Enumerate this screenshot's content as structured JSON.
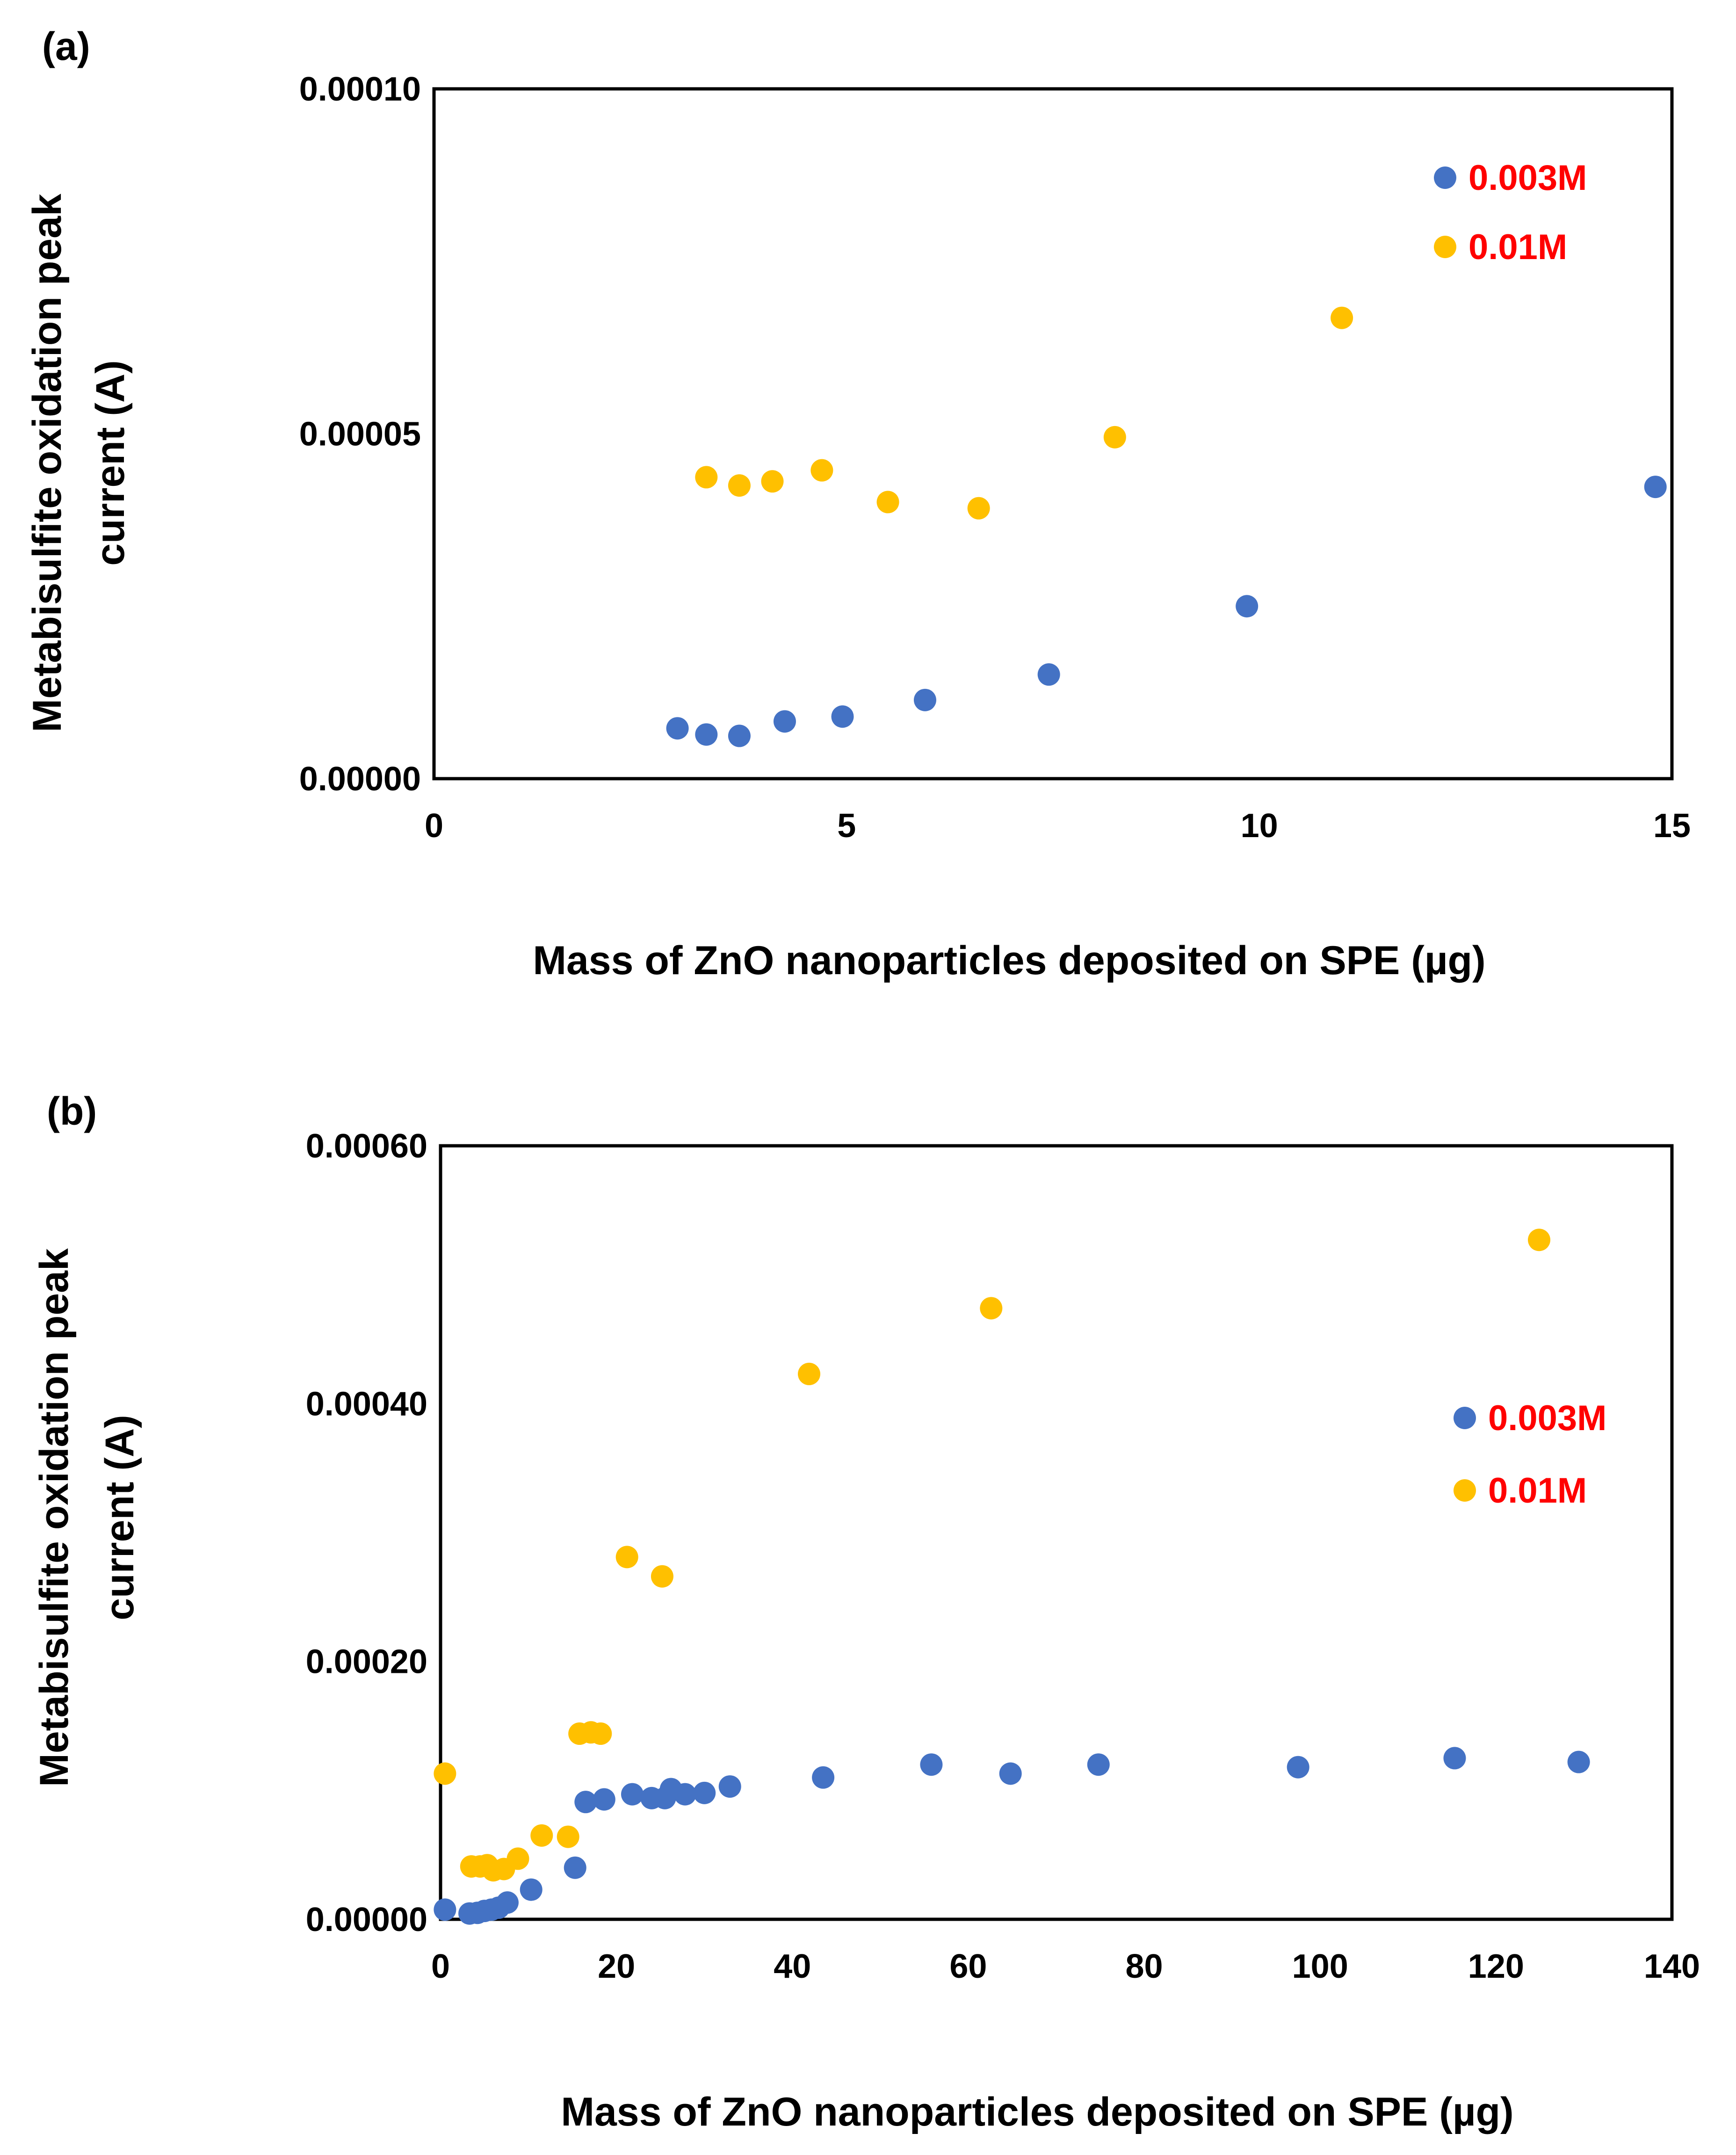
{
  "chart_data": [
    {
      "type": "scatter",
      "panel_label": "(a)",
      "xlabel": "Mass of ZnO nanoparticles deposited on SPE (µg)",
      "ylabel_lines": [
        "Metabisulfite oxidation peak",
        "current  (A)"
      ],
      "xlim": [
        0,
        15
      ],
      "ylim": [
        0,
        0.0001
      ],
      "xticks": [
        0,
        5,
        10,
        15
      ],
      "xtick_labels": [
        "0",
        "5",
        "10",
        "15"
      ],
      "yticks": [
        0,
        5e-05,
        0.0001
      ],
      "ytick_labels": [
        "0.00000",
        "0.00005",
        "0.00010"
      ],
      "legend_position": "top-right",
      "series": [
        {
          "name": "0.003M",
          "color": "#4472C4",
          "x": [
            2.95,
            3.3,
            3.7,
            4.25,
            4.95,
            5.95,
            7.45,
            9.85,
            14.8
          ],
          "y": [
            7.3e-06,
            6.4e-06,
            6.2e-06,
            8.3e-06,
            9e-06,
            1.14e-05,
            1.51e-05,
            2.5e-05,
            4.23e-05
          ]
        },
        {
          "name": "0.01M",
          "color": "#FFC000",
          "x": [
            3.3,
            3.7,
            4.1,
            4.7,
            5.5,
            6.6,
            8.25,
            11.0
          ],
          "y": [
            4.37e-05,
            4.25e-05,
            4.31e-05,
            4.47e-05,
            4.01e-05,
            3.92e-05,
            4.95e-05,
            6.68e-05
          ]
        }
      ]
    },
    {
      "type": "scatter",
      "panel_label": "(b)",
      "xlabel": "Mass of ZnO nanoparticles deposited on SPE (µg)",
      "ylabel_lines": [
        "Metabisulfite oxidation peak",
        "current  (A)"
      ],
      "xlim": [
        0,
        140
      ],
      "ylim": [
        0,
        0.0006
      ],
      "xticks": [
        0,
        20,
        40,
        60,
        80,
        100,
        120,
        140
      ],
      "xtick_labels": [
        "0",
        "20",
        "40",
        "60",
        "80",
        "100",
        "120",
        "140"
      ],
      "yticks": [
        0,
        0.0002,
        0.0004,
        0.0006
      ],
      "ytick_labels": [
        "0.00000",
        "0.00020",
        "0.00040",
        "0.00060"
      ],
      "legend_position": "right",
      "series": [
        {
          "name": "0.003M",
          "color": "#4472C4",
          "x": [
            0.5,
            3.3,
            4.2,
            5.0,
            5.8,
            6.6,
            7.6,
            10.3,
            15.3,
            16.5,
            18.6,
            21.8,
            24.0,
            25.5,
            26.2,
            27.8,
            30.0,
            32.9,
            43.5,
            55.8,
            64.8,
            74.8,
            97.5,
            115.3,
            129.4
          ],
          "y": [
            7.5e-06,
            4.5e-06,
            5e-06,
            6.5e-06,
            7.5e-06,
            9e-06,
            1.3e-05,
            2.3e-05,
            4e-05,
            9.1e-05,
            9.3e-05,
            9.7e-05,
            9.4e-05,
            9.4e-05,
            0.000101,
            9.7e-05,
            9.8e-05,
            0.000103,
            0.00011,
            0.00012,
            0.000113,
            0.00012,
            0.000118,
            0.000125,
            0.000122
          ]
        },
        {
          "name": "0.01M",
          "color": "#FFC000",
          "x": [
            0.5,
            3.5,
            4.5,
            5.3,
            6.0,
            7.2,
            8.8,
            11.5,
            14.5,
            15.8,
            17.1,
            18.2,
            21.2,
            25.2,
            41.9,
            62.6,
            124.9
          ],
          "y": [
            0.000113,
            4.1e-05,
            4.1e-05,
            4.2e-05,
            3.8e-05,
            3.9e-05,
            4.7e-05,
            6.5e-05,
            6.4e-05,
            0.000144,
            0.000145,
            0.000144,
            0.000281,
            0.000266,
            0.000423,
            0.000474,
            0.000527
          ]
        }
      ]
    }
  ]
}
